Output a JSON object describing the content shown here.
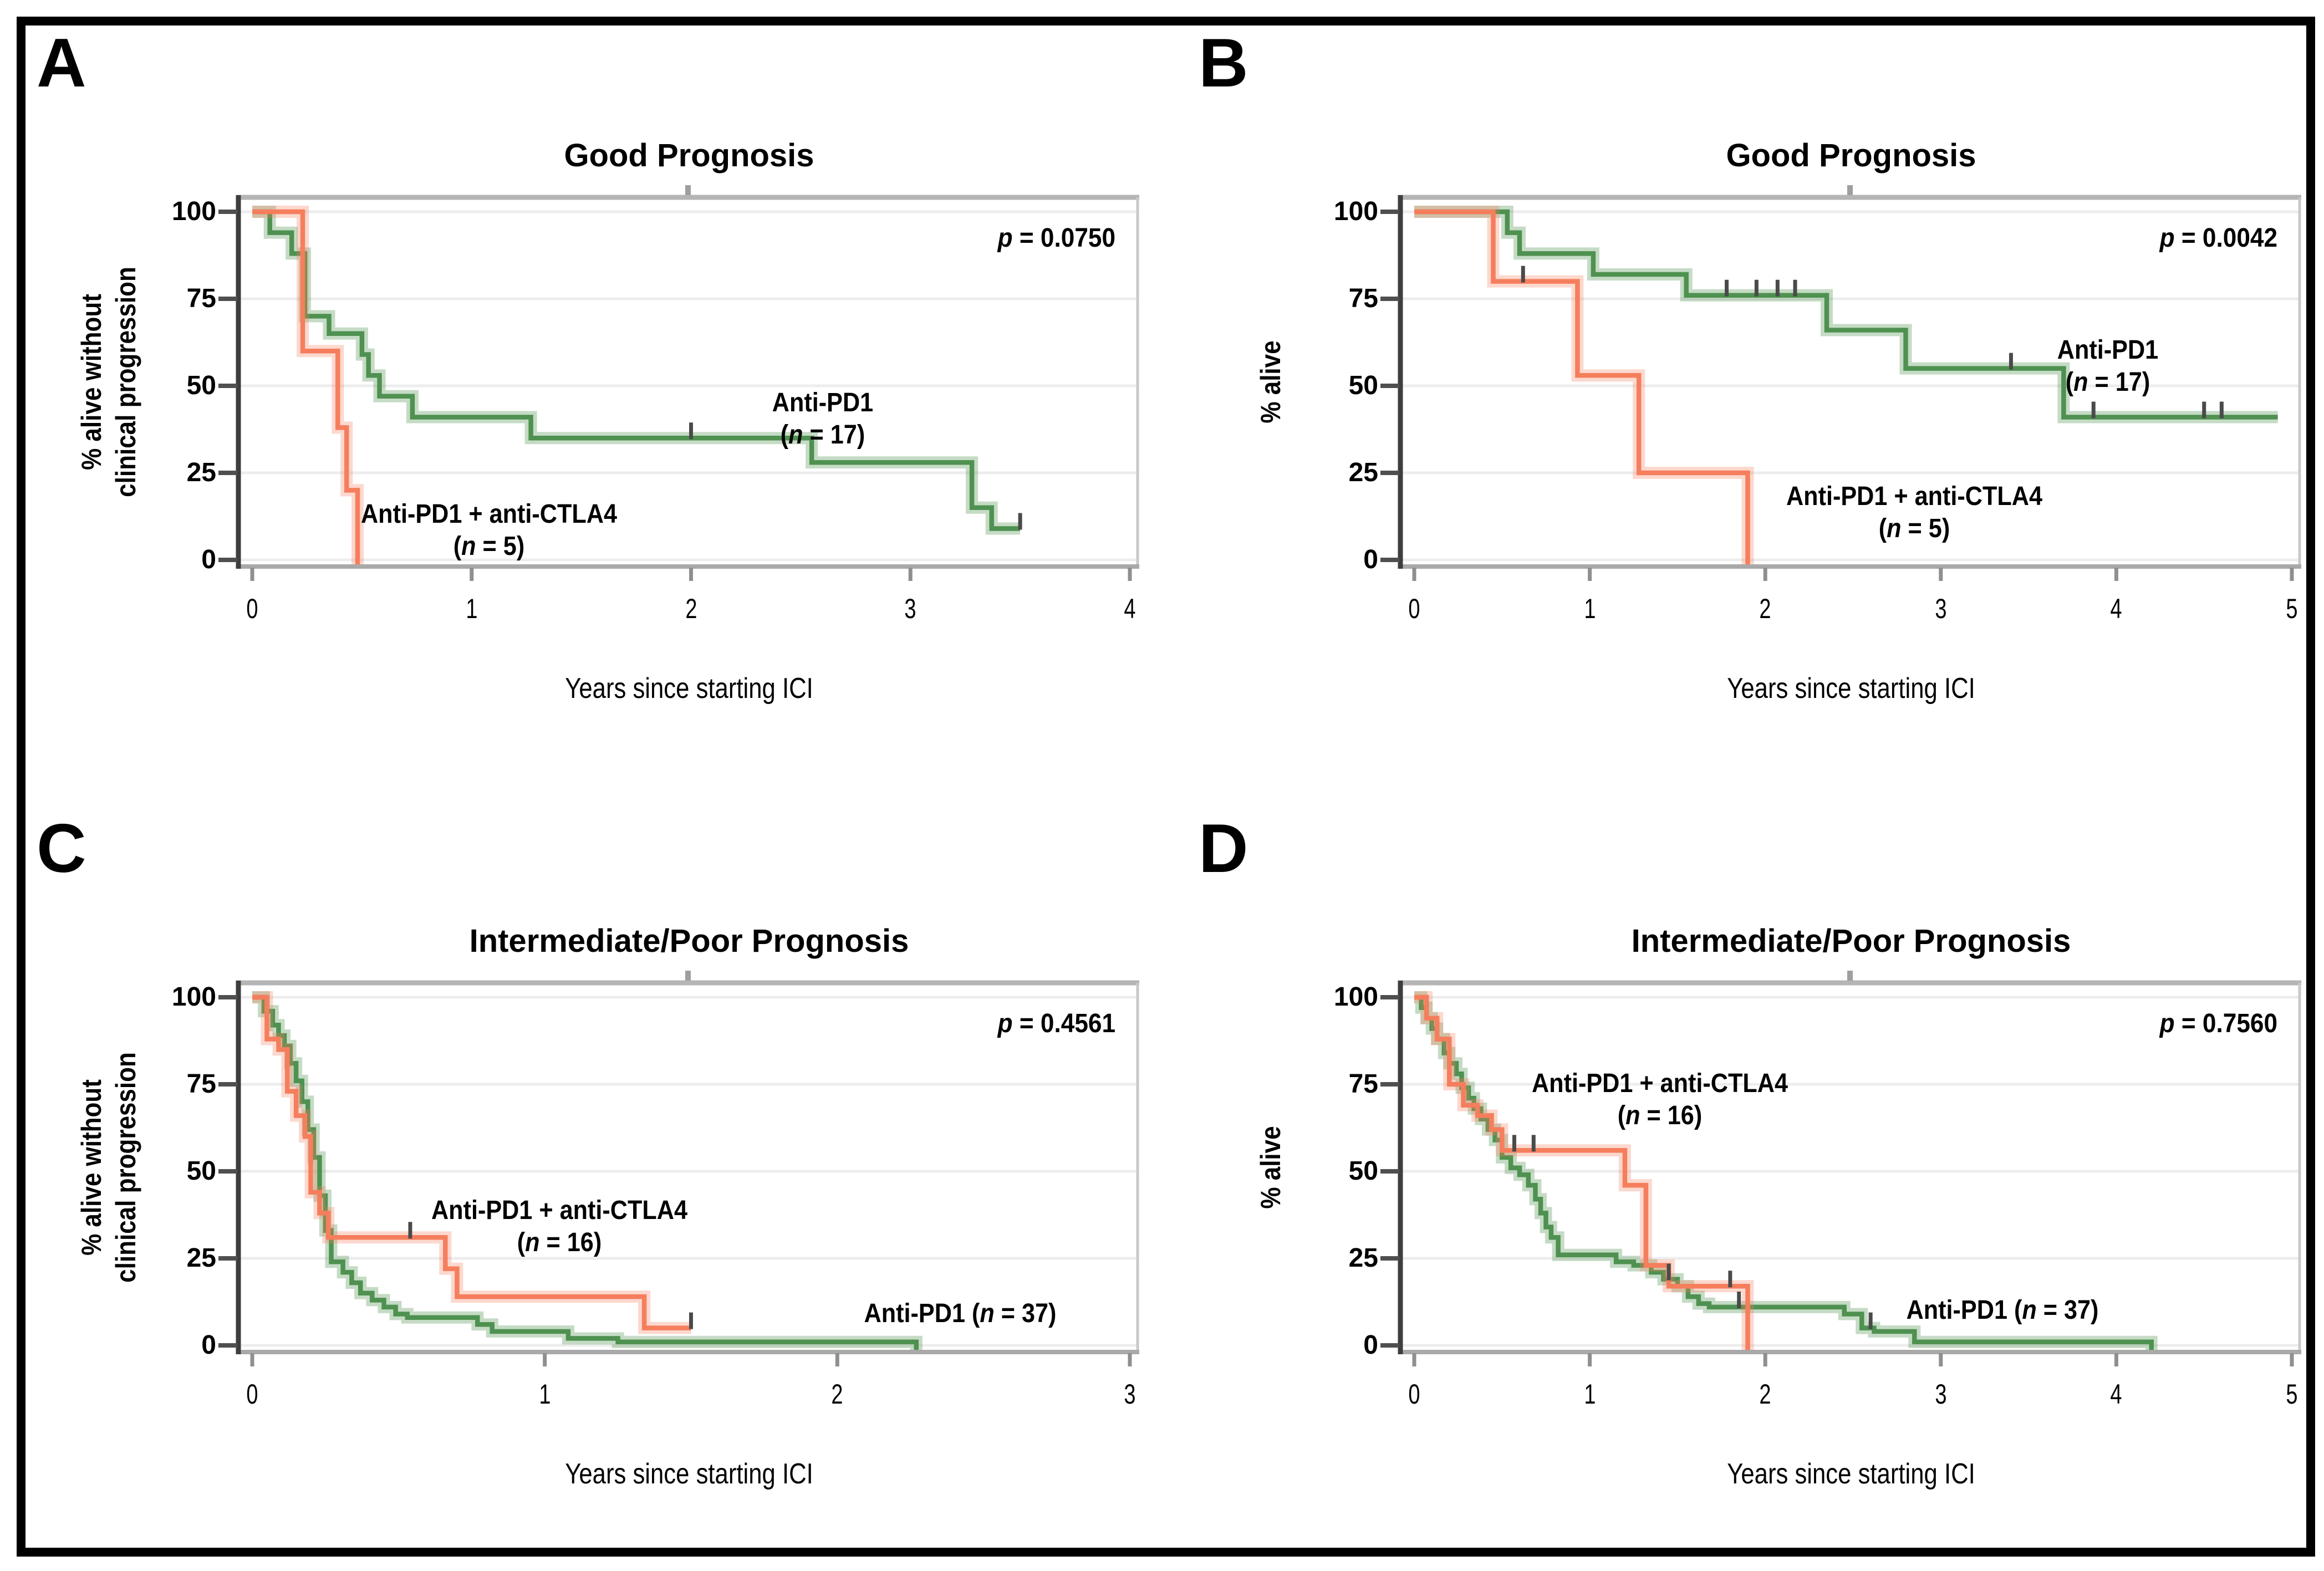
{
  "shared": {
    "x_axis_label": "Years since starting ICI",
    "figure_background": "#ffffff",
    "figure_border_color": "#000000"
  },
  "colors": {
    "green": "#4f9150",
    "green_halo": "rgba(79,145,80,0.33)",
    "orange": "#f57e5d",
    "orange_halo": "rgba(245,126,93,0.30)",
    "grid": "#ededed",
    "axis_dark": "#3e3e3e",
    "border_gray": "#b5b5b5",
    "border_gray_light": "#c9c9c9",
    "border_bottom": "#a9a9a9",
    "tick_dark": "#4f4f4f",
    "tick_light": "#8f8f8f",
    "censor": "#4a4a4a",
    "text": "#000000"
  },
  "chart_data": [
    {
      "panel_letter": "A",
      "type": "line",
      "subtype": "kaplan-meier-step",
      "title": "Good Prognosis",
      "p_label": "p = 0.0750",
      "p_value": 0.075,
      "xlabel": "Years since starting ICI",
      "ylabel_lines": [
        "% alive without",
        "clinical progression"
      ],
      "xlim": [
        0,
        4
      ],
      "ylim": [
        0,
        100
      ],
      "x_ticks": [
        0,
        1,
        2,
        3,
        4
      ],
      "y_ticks": [
        0,
        25,
        50,
        75,
        100
      ],
      "grid": "horizontal",
      "legend_position": "labels-on-plot",
      "series": [
        {
          "name": "Anti-PD1",
          "n": 17,
          "color_key": "green",
          "label_lines": [
            "Anti-PD1",
            "(n = 17)"
          ],
          "label_center": [
            2.6,
            40.5
          ],
          "steps": [
            [
              0,
              100
            ],
            [
              0.08,
              94
            ],
            [
              0.18,
              88
            ],
            [
              0.24,
              70
            ],
            [
              0.35,
              65
            ],
            [
              0.5,
              59
            ],
            [
              0.53,
              53
            ],
            [
              0.58,
              47
            ],
            [
              0.73,
              41
            ],
            [
              1.27,
              35
            ],
            [
              2.55,
              28
            ],
            [
              3.28,
              15
            ],
            [
              3.37,
              9
            ]
          ],
          "end_x": 3.5,
          "censors": [
            [
              2.0,
              35
            ],
            [
              3.5,
              9
            ]
          ]
        },
        {
          "name": "Anti-PD1 + anti-CTLA4",
          "n": 5,
          "color_key": "orange",
          "label_lines": [
            "Anti-PD1 + anti-CTLA4",
            "(n = 5)"
          ],
          "label_center": [
            1.08,
            8.5
          ],
          "steps": [
            [
              0,
              100
            ],
            [
              0.23,
              60
            ],
            [
              0.39,
              38
            ],
            [
              0.43,
              20
            ],
            [
              0.48,
              -3
            ]
          ],
          "end_x": 0.48,
          "censors": []
        }
      ]
    },
    {
      "panel_letter": "B",
      "type": "line",
      "subtype": "kaplan-meier-step",
      "title": "Good Prognosis",
      "p_label": "p = 0.0042",
      "p_value": 0.0042,
      "xlabel": "Years since starting ICI",
      "ylabel_lines": [
        "% alive"
      ],
      "xlim": [
        0,
        5
      ],
      "ylim": [
        0,
        100
      ],
      "x_ticks": [
        0,
        1,
        2,
        3,
        4,
        5
      ],
      "y_ticks": [
        0,
        25,
        50,
        75,
        100
      ],
      "grid": "horizontal",
      "legend_position": "labels-on-plot",
      "series": [
        {
          "name": "Anti-PD1",
          "n": 17,
          "color_key": "green",
          "label_lines": [
            "Anti-PD1",
            "(n = 17)"
          ],
          "label_center": [
            3.95,
            55.5
          ],
          "steps": [
            [
              0,
              100
            ],
            [
              0.53,
              94
            ],
            [
              0.6,
              88
            ],
            [
              1.02,
              82
            ],
            [
              1.55,
              76
            ],
            [
              2.35,
              66
            ],
            [
              2.8,
              55
            ],
            [
              3.7,
              41
            ]
          ],
          "end_x": 4.92,
          "censors": [
            [
              1.78,
              76
            ],
            [
              1.95,
              76
            ],
            [
              2.07,
              76
            ],
            [
              2.17,
              76
            ],
            [
              3.4,
              55
            ],
            [
              3.87,
              41
            ],
            [
              4.5,
              41
            ],
            [
              4.6,
              41
            ]
          ]
        },
        {
          "name": "Anti-PD1 + anti-CTLA4",
          "n": 5,
          "color_key": "orange",
          "label_lines": [
            "Anti-PD1 + anti-CTLA4",
            "(n = 5)"
          ],
          "label_center": [
            2.85,
            13.5
          ],
          "steps": [
            [
              0,
              100
            ],
            [
              0.45,
              80
            ],
            [
              0.93,
              53
            ],
            [
              1.28,
              25
            ],
            [
              1.9,
              -3
            ]
          ],
          "end_x": 1.9,
          "censors": [
            [
              0.62,
              80
            ]
          ]
        }
      ]
    },
    {
      "panel_letter": "C",
      "type": "line",
      "subtype": "kaplan-meier-step",
      "title": "Intermediate/Poor Prognosis",
      "p_label": "p = 0.4561",
      "p_value": 0.4561,
      "xlabel": "Years since starting ICI",
      "ylabel_lines": [
        "% alive without",
        "clinical progression"
      ],
      "xlim": [
        0,
        3
      ],
      "ylim": [
        0,
        100
      ],
      "x_ticks": [
        0,
        1,
        2,
        3
      ],
      "y_ticks": [
        0,
        25,
        50,
        75,
        100
      ],
      "grid": "horizontal",
      "legend_position": "labels-on-plot",
      "series": [
        {
          "name": "Anti-PD1",
          "n": 37,
          "color_key": "green",
          "label_lines": [
            "Anti-PD1 (n = 37)"
          ],
          "label_center": [
            2.42,
            9
          ],
          "steps": [
            [
              0,
              100
            ],
            [
              0.04,
              96
            ],
            [
              0.07,
              92
            ],
            [
              0.09,
              89
            ],
            [
              0.11,
              86
            ],
            [
              0.13,
              81
            ],
            [
              0.15,
              76
            ],
            [
              0.17,
              70
            ],
            [
              0.19,
              62
            ],
            [
              0.21,
              54
            ],
            [
              0.23,
              43
            ],
            [
              0.25,
              33
            ],
            [
              0.27,
              24
            ],
            [
              0.31,
              21
            ],
            [
              0.34,
              18
            ],
            [
              0.37,
              15
            ],
            [
              0.41,
              13
            ],
            [
              0.45,
              11
            ],
            [
              0.49,
              9
            ],
            [
              0.53,
              8
            ],
            [
              0.77,
              6
            ],
            [
              0.82,
              4
            ],
            [
              1.08,
              2
            ],
            [
              1.25,
              1
            ],
            [
              2.27,
              -3
            ]
          ],
          "end_x": 2.27,
          "censors": []
        },
        {
          "name": "Anti-PD1 + anti-CTLA4",
          "n": 16,
          "color_key": "orange",
          "label_lines": [
            "Anti-PD1 + anti-CTLA4",
            "(n = 16)"
          ],
          "label_center": [
            1.05,
            34
          ],
          "steps": [
            [
              0,
              100
            ],
            [
              0.05,
              88
            ],
            [
              0.09,
              85
            ],
            [
              0.12,
              73
            ],
            [
              0.15,
              66
            ],
            [
              0.18,
              60
            ],
            [
              0.2,
              44
            ],
            [
              0.23,
              38
            ],
            [
              0.26,
              31
            ],
            [
              0.66,
              22
            ],
            [
              0.7,
              14
            ],
            [
              1.34,
              5
            ]
          ],
          "end_x": 1.5,
          "censors": [
            [
              0.54,
              31
            ],
            [
              1.5,
              5
            ]
          ]
        }
      ]
    },
    {
      "panel_letter": "D",
      "type": "line",
      "subtype": "kaplan-meier-step",
      "title": "Intermediate/Poor Prognosis",
      "p_label": "p = 0.7560",
      "p_value": 0.756,
      "xlabel": "Years since starting ICI",
      "ylabel_lines": [
        "% alive"
      ],
      "xlim": [
        0,
        5
      ],
      "ylim": [
        0,
        100
      ],
      "x_ticks": [
        0,
        1,
        2,
        3,
        4,
        5
      ],
      "y_ticks": [
        0,
        25,
        50,
        75,
        100
      ],
      "grid": "horizontal",
      "legend_position": "labels-on-plot",
      "series": [
        {
          "name": "Anti-PD1",
          "n": 37,
          "color_key": "green",
          "label_lines": [
            "Anti-PD1 (n = 37)"
          ],
          "label_center": [
            3.35,
            10
          ],
          "steps": [
            [
              0,
              100
            ],
            [
              0.04,
              97
            ],
            [
              0.07,
              94
            ],
            [
              0.1,
              91
            ],
            [
              0.13,
              88
            ],
            [
              0.17,
              84
            ],
            [
              0.2,
              81
            ],
            [
              0.24,
              78
            ],
            [
              0.27,
              74
            ],
            [
              0.31,
              71
            ],
            [
              0.34,
              68
            ],
            [
              0.38,
              65
            ],
            [
              0.42,
              62
            ],
            [
              0.46,
              59
            ],
            [
              0.5,
              54
            ],
            [
              0.55,
              51
            ],
            [
              0.6,
              49
            ],
            [
              0.65,
              46
            ],
            [
              0.69,
              42
            ],
            [
              0.72,
              38
            ],
            [
              0.75,
              34
            ],
            [
              0.78,
              31
            ],
            [
              0.82,
              26
            ],
            [
              1.15,
              24
            ],
            [
              1.25,
              23
            ],
            [
              1.35,
              21
            ],
            [
              1.42,
              19
            ],
            [
              1.5,
              17
            ],
            [
              1.56,
              14
            ],
            [
              1.62,
              12
            ],
            [
              1.68,
              11
            ],
            [
              2.45,
              9
            ],
            [
              2.55,
              5
            ],
            [
              2.62,
              4
            ],
            [
              2.85,
              1
            ],
            [
              4.2,
              -3
            ]
          ],
          "end_x": 4.2,
          "censors": [
            [
              1.45,
              19
            ],
            [
              1.85,
              11
            ],
            [
              2.6,
              5
            ]
          ]
        },
        {
          "name": "Anti-PD1 + anti-CTLA4",
          "n": 16,
          "color_key": "orange",
          "label_lines": [
            "Anti-PD1 + anti-CTLA4",
            "(n = 16)"
          ],
          "label_center": [
            1.4,
            70.5
          ],
          "steps": [
            [
              0,
              100
            ],
            [
              0.07,
              94
            ],
            [
              0.13,
              88
            ],
            [
              0.2,
              75
            ],
            [
              0.28,
              69
            ],
            [
              0.36,
              66
            ],
            [
              0.44,
              62
            ],
            [
              0.5,
              56
            ],
            [
              1.2,
              46
            ],
            [
              1.32,
              23
            ],
            [
              1.45,
              17
            ],
            [
              1.9,
              -3
            ]
          ],
          "end_x": 1.9,
          "censors": [
            [
              0.57,
              56
            ],
            [
              0.68,
              56
            ],
            [
              1.8,
              17
            ]
          ]
        }
      ]
    }
  ]
}
